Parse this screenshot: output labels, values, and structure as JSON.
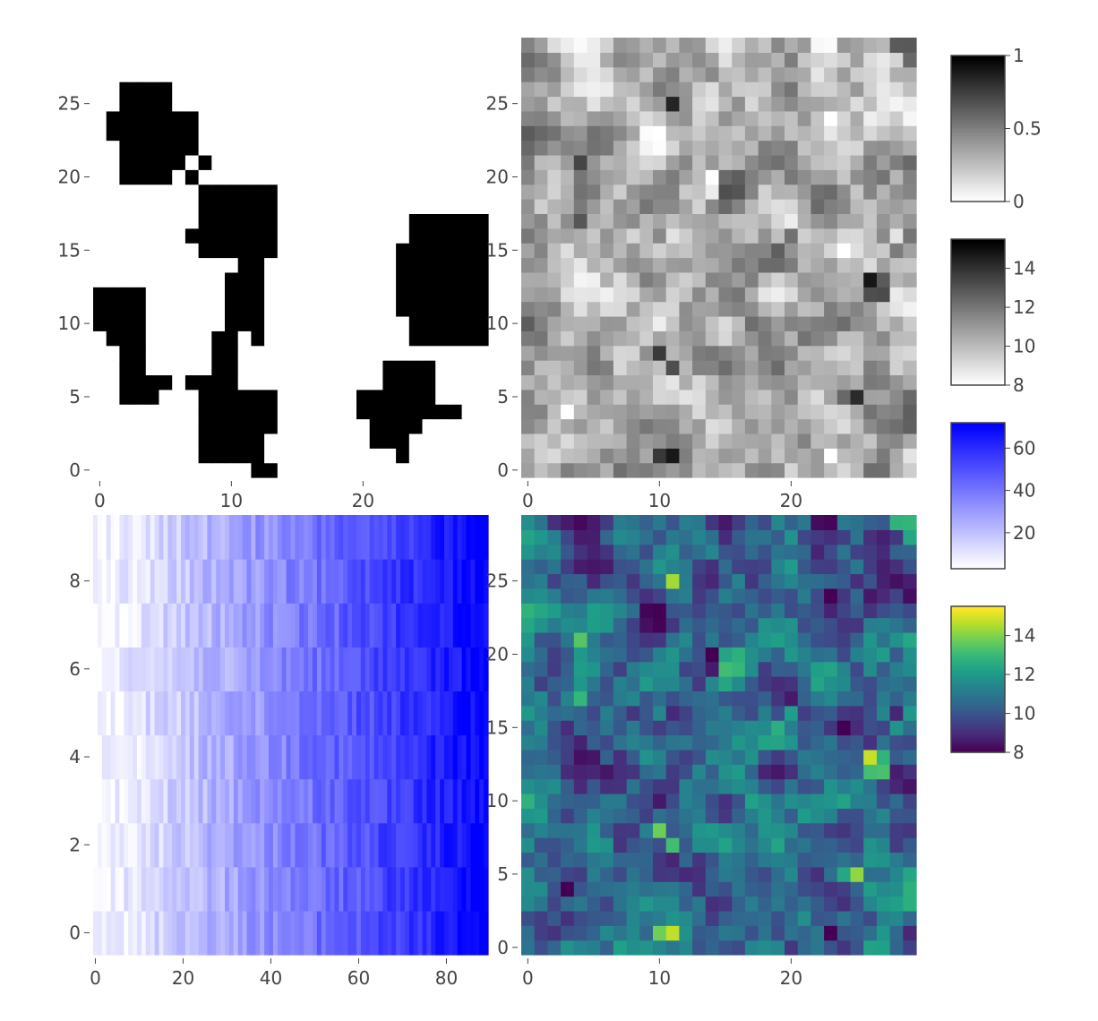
{
  "chart_data": [
    {
      "type": "heatmap",
      "panel": "top-left",
      "x_range": [
        0,
        29
      ],
      "y_range": [
        0,
        29
      ],
      "x_ticks": [
        "0",
        "10",
        "20"
      ],
      "y_ticks": [
        "0",
        "5",
        "10",
        "15",
        "20",
        "25"
      ],
      "colorscale": "greys",
      "z_range": [
        0,
        1
      ],
      "colorbar_ticks": [
        "0",
        "0.5",
        "1"
      ],
      "content": "binary mask (white regions on black)"
    },
    {
      "type": "heatmap",
      "panel": "top-right",
      "x_range": [
        0,
        29
      ],
      "y_range": [
        0,
        29
      ],
      "x_ticks": [
        "0",
        "10",
        "20"
      ],
      "y_ticks": [
        "0",
        "5",
        "10",
        "15",
        "20",
        "25"
      ],
      "colorscale": "greys",
      "z_range": [
        8,
        15.5
      ],
      "colorbar_ticks": [
        "8",
        "10",
        "12",
        "14"
      ],
      "content": "noisy field, same values as bottom-right panel"
    },
    {
      "type": "heatmap",
      "panel": "bottom-left",
      "x_range": [
        0,
        89
      ],
      "y_range": [
        0,
        9
      ],
      "x_ticks": [
        "0",
        "20",
        "40",
        "60",
        "80"
      ],
      "y_ticks": [
        "0",
        "2",
        "4",
        "6",
        "8"
      ],
      "colorscale": "white-to-blue",
      "z_range": [
        3,
        72
      ],
      "colorbar_ticks": [
        "20",
        "40",
        "60"
      ],
      "content": "values increase with x"
    },
    {
      "type": "heatmap",
      "panel": "bottom-right",
      "x_range": [
        0,
        29
      ],
      "y_range": [
        0,
        29
      ],
      "x_ticks": [
        "0",
        "10",
        "20"
      ],
      "y_ticks": [
        "0",
        "5",
        "10",
        "15",
        "20",
        "25"
      ],
      "colorscale": "viridis",
      "z_range": [
        8,
        15.5
      ],
      "colorbar_ticks": [
        "8",
        "10",
        "12",
        "14"
      ],
      "content": "noisy field with a hot spot near x=26, y=13"
    }
  ],
  "colors": {
    "tick_text": "#444444",
    "colorbar_border": "#444444",
    "blue_max": "#0000ff",
    "viridis": [
      "#440154",
      "#482878",
      "#3e4989",
      "#31688e",
      "#26828e",
      "#1f9e89",
      "#35b779",
      "#6ece58",
      "#b5de2b",
      "#fde725"
    ]
  }
}
